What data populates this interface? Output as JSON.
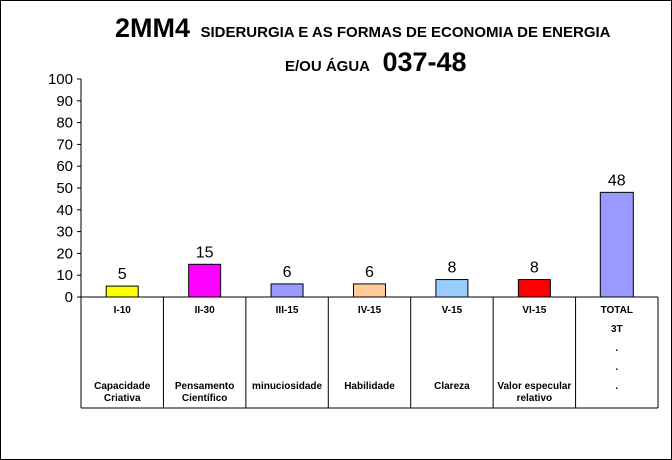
{
  "chart_data": {
    "type": "bar",
    "title_prefix": "2MM4",
    "title_main": "SIDERURGIA E AS FORMAS DE ECONOMIA DE ENERGIA",
    "title_line2": "E/OU ÁGUA",
    "title_code": "037-48",
    "ylim": [
      0,
      100
    ],
    "yticks": [
      0,
      10,
      20,
      30,
      40,
      50,
      60,
      70,
      80,
      90,
      100
    ],
    "grid": false,
    "legend": "none",
    "categories": [
      {
        "code": "I-10",
        "label": "Capacidade Criativa",
        "value": 5,
        "color": "#FFFF00"
      },
      {
        "code": "II-30",
        "label": "Pensamento Científico",
        "value": 15,
        "color": "#FF00FF"
      },
      {
        "code": "III-15",
        "label": "minuciosidade",
        "value": 6,
        "color": "#9999FF"
      },
      {
        "code": "IV-15",
        "label": "Habilidade",
        "value": 6,
        "color": "#FFCC99"
      },
      {
        "code": "V-15",
        "label": "Clareza",
        "value": 8,
        "color": "#99CCFF"
      },
      {
        "code": "VI-15",
        "label": "Valor especular relativo",
        "value": 8,
        "color": "#FF0000"
      },
      {
        "code": "TOTAL",
        "label": "",
        "value": 48,
        "color": "#9999FF",
        "extra_lines": [
          "3T",
          ".",
          ".",
          "."
        ]
      }
    ]
  }
}
